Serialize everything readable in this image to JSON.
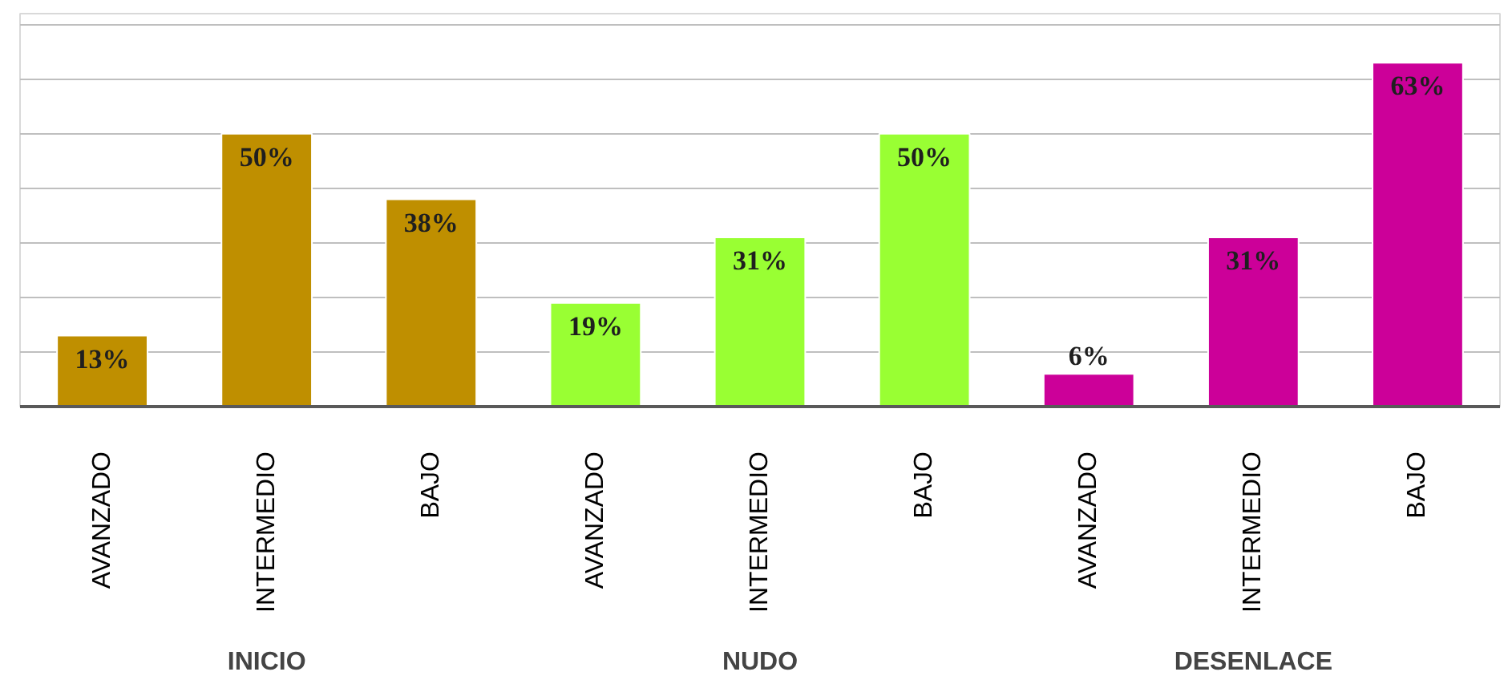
{
  "chart_data": {
    "type": "bar",
    "categories": [
      "AVANZADO",
      "INTERMEDIO",
      "BAJO",
      "AVANZADO",
      "INTERMEDIO",
      "BAJO",
      "AVANZADO",
      "INTERMEDIO",
      "BAJO"
    ],
    "values": [
      13,
      50,
      38,
      19,
      31,
      50,
      6,
      31,
      63
    ],
    "colors": [
      "#bf8f00",
      "#bf8f00",
      "#bf8f00",
      "#99ff33",
      "#99ff33",
      "#99ff33",
      "#cc0099",
      "#cc0099",
      "#cc0099"
    ],
    "value_labels": [
      "13%",
      "50%",
      "38%",
      "19%",
      "31%",
      "50%",
      "6%",
      "31%",
      "63%"
    ],
    "annotations": [
      "INICIO",
      "NUDO",
      "DESENLACE"
    ],
    "ylim": [
      0,
      72
    ],
    "yticks": [
      {
        "value": 0,
        "label": null
      },
      {
        "value": 10,
        "label": null
      },
      {
        "value": 20,
        "label": null
      },
      {
        "value": 30,
        "label": null
      },
      {
        "value": 40,
        "label": null
      },
      {
        "value": 50,
        "label": null
      },
      {
        "value": 60,
        "label": null
      },
      {
        "value": 70,
        "label": null
      }
    ],
    "grid": "y",
    "tick_labels": "x"
  }
}
